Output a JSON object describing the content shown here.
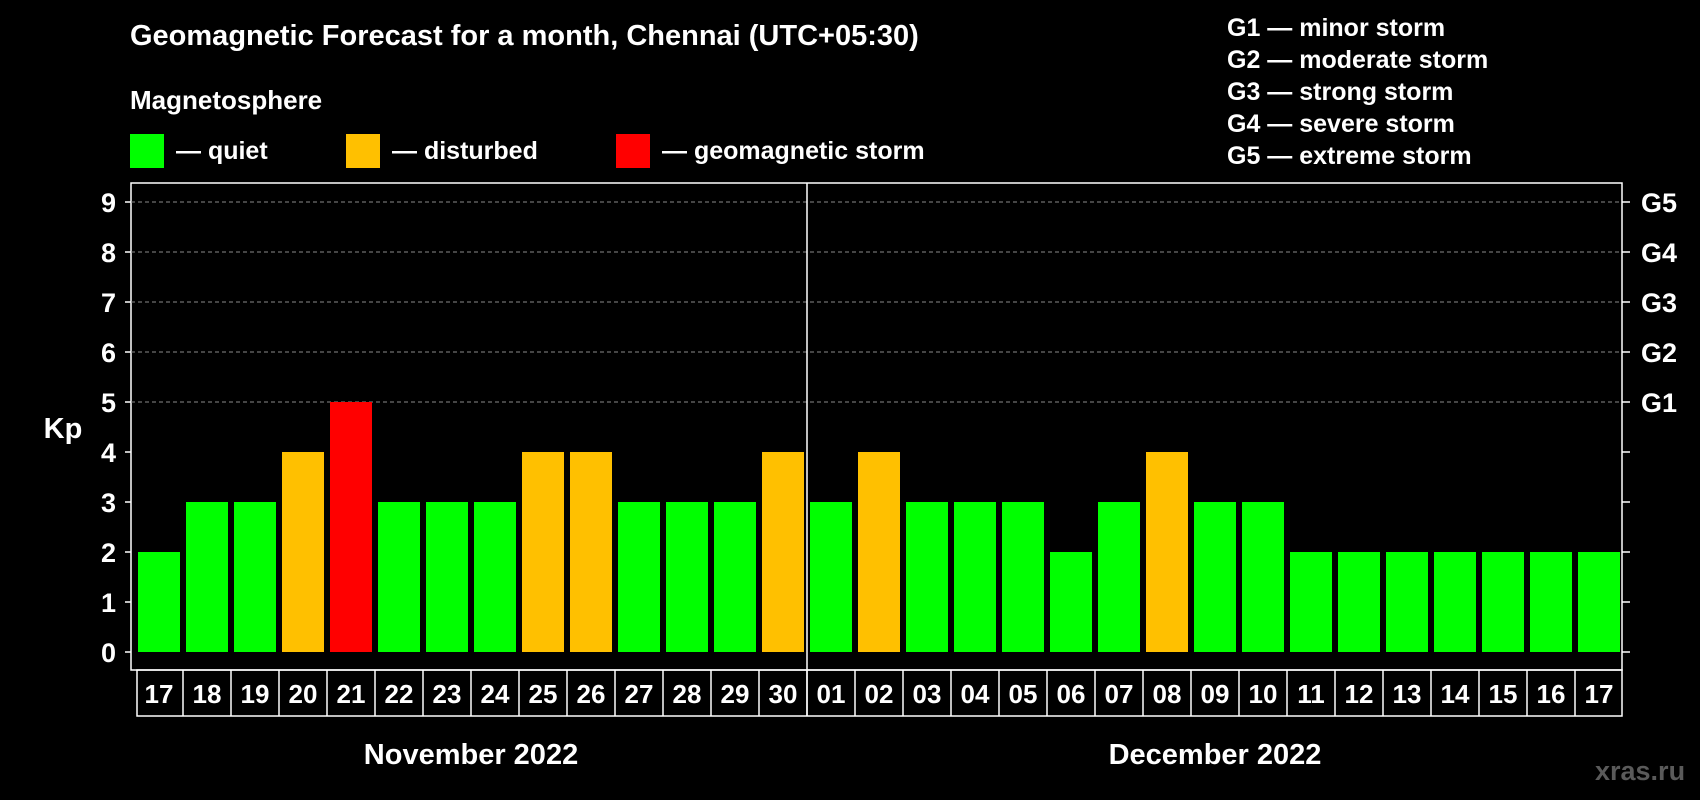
{
  "header": {
    "title": "Geomagnetic Forecast for a month, Chennai (UTC+05:30)",
    "subtitle": "Magnetosphere"
  },
  "legend": [
    {
      "label": "— quiet",
      "color": "#00ff00"
    },
    {
      "label": "— disturbed",
      "color": "#ffc000"
    },
    {
      "label": "— geomagnetic storm",
      "color": "#ff0000"
    }
  ],
  "g_levels": [
    "G1 — minor storm",
    "G2 — moderate storm",
    "G3 — strong storm",
    "G4 — severe storm",
    "G5 — extreme storm"
  ],
  "watermark": "xras.ru",
  "chart_data": {
    "type": "bar",
    "title": "Geomagnetic Forecast for a month, Chennai (UTC+05:30)",
    "ylabel": "Kp",
    "ylim": [
      0,
      9
    ],
    "yticks": [
      "0",
      "1",
      "2",
      "3",
      "4",
      "5",
      "6",
      "7",
      "8",
      "9"
    ],
    "right_axis_labels": [
      {
        "kp": 5,
        "label": "G1"
      },
      {
        "kp": 6,
        "label": "G2"
      },
      {
        "kp": 7,
        "label": "G3"
      },
      {
        "kp": 8,
        "label": "G4"
      },
      {
        "kp": 9,
        "label": "G5"
      }
    ],
    "grid": "dashed horizontal at Kp 5-9",
    "categories": [
      "17",
      "18",
      "19",
      "20",
      "21",
      "22",
      "23",
      "24",
      "25",
      "26",
      "27",
      "28",
      "29",
      "30",
      "01",
      "02",
      "03",
      "04",
      "05",
      "06",
      "07",
      "08",
      "09",
      "10",
      "11",
      "12",
      "13",
      "14",
      "15",
      "16",
      "17"
    ],
    "values": [
      2,
      3,
      3,
      4,
      5,
      3,
      3,
      3,
      4,
      4,
      3,
      3,
      3,
      4,
      3,
      4,
      3,
      3,
      3,
      2,
      3,
      4,
      3,
      3,
      2,
      2,
      2,
      2,
      2,
      2,
      2
    ],
    "status": [
      "quiet",
      "quiet",
      "quiet",
      "disturbed",
      "storm",
      "quiet",
      "quiet",
      "quiet",
      "disturbed",
      "disturbed",
      "quiet",
      "quiet",
      "quiet",
      "disturbed",
      "quiet",
      "disturbed",
      "quiet",
      "quiet",
      "quiet",
      "quiet",
      "quiet",
      "disturbed",
      "quiet",
      "quiet",
      "quiet",
      "quiet",
      "quiet",
      "quiet",
      "quiet",
      "quiet",
      "quiet"
    ],
    "colors": {
      "quiet": "#00ff00",
      "disturbed": "#ffc000",
      "storm": "#ff0000"
    },
    "months": [
      {
        "label": "November 2022",
        "start_index": 0,
        "end_index": 13
      },
      {
        "label": "December 2022",
        "start_index": 14,
        "end_index": 30
      }
    ],
    "month_divider_after_index": 13
  }
}
